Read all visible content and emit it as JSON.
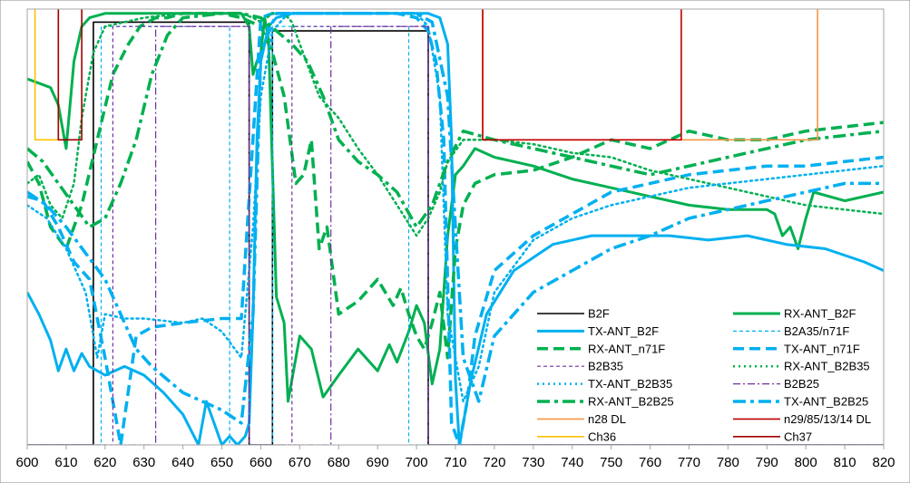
{
  "chart_data": {
    "type": "line",
    "title": "",
    "xlabel": "",
    "ylabel": "",
    "xlim": [
      600,
      820
    ],
    "ylim": [
      0,
      100
    ],
    "x_ticks": [
      600,
      610,
      620,
      630,
      640,
      650,
      660,
      670,
      680,
      690,
      700,
      710,
      720,
      730,
      740,
      750,
      760,
      770,
      780,
      790,
      800,
      810,
      820
    ],
    "y_tick_labels_visible": false,
    "grid": false,
    "legend_position": "bottom-right",
    "colors": {
      "black": "#000000",
      "green": "#00b050",
      "blue": "#00b0f0",
      "purple": "#7030a0",
      "orange": "#f79646",
      "red": "#c00000",
      "gold": "#ffc000",
      "darkred": "#a00000"
    },
    "series": [
      {
        "name": "B2F",
        "color": "#000000",
        "style": "solid",
        "width": 1.6,
        "x": [
          600,
          617,
          617,
          657,
          657,
          663,
          663,
          703,
          703,
          820
        ],
        "y": [
          0,
          0,
          97,
          97,
          0,
          0,
          95,
          95,
          0,
          0
        ]
      },
      {
        "name": "RX-ANT_B2F",
        "color": "#00b050",
        "style": "solid",
        "width": 3,
        "x": [
          600,
          603,
          606,
          608,
          609,
          610,
          612,
          614,
          616,
          620,
          630,
          640,
          650,
          655,
          657,
          658,
          659,
          660,
          661,
          662,
          664,
          666,
          667,
          670,
          673,
          676,
          680,
          685,
          690,
          693,
          695,
          698,
          700,
          702,
          704,
          706,
          708,
          710,
          712,
          715,
          720,
          730,
          740,
          750,
          760,
          770,
          780,
          790,
          792,
          794,
          796,
          798,
          800,
          802,
          810,
          820
        ],
        "y": [
          84,
          83,
          82,
          78,
          73,
          68,
          88,
          96,
          98,
          99,
          99,
          99,
          99,
          99,
          96,
          85,
          88,
          90,
          98,
          93,
          34,
          28,
          10,
          25,
          22,
          11,
          16,
          22,
          17,
          23,
          19,
          26,
          32,
          28,
          14,
          22,
          48,
          62,
          64,
          68,
          66,
          64,
          61,
          59,
          57,
          55,
          54,
          54,
          53,
          48,
          50,
          45,
          52,
          58,
          56,
          58
        ]
      },
      {
        "name": "TX-ANT_B2F",
        "color": "#00b0f0",
        "style": "solid",
        "width": 3,
        "x": [
          600,
          603,
          606,
          608,
          610,
          612,
          614,
          616,
          620,
          625,
          630,
          635,
          640,
          644,
          646,
          648,
          650,
          652,
          654,
          656,
          657,
          658,
          659,
          660,
          662,
          664,
          668,
          675,
          685,
          695,
          700,
          703,
          706,
          708,
          709,
          710,
          711,
          714,
          718,
          725,
          735,
          745,
          755,
          765,
          775,
          785,
          795,
          805,
          815,
          820
        ],
        "y": [
          35,
          30,
          24,
          17,
          22,
          17,
          21,
          18,
          16,
          18,
          16,
          12,
          7,
          0,
          10,
          5,
          0,
          2,
          0,
          2,
          5,
          30,
          70,
          88,
          96,
          98,
          99,
          99,
          99,
          99,
          99,
          99,
          98,
          92,
          70,
          15,
          0,
          15,
          30,
          40,
          46,
          48,
          48,
          48,
          47,
          48,
          46,
          45,
          42,
          40
        ]
      },
      {
        "name": "B2A35/n71F",
        "color": "#00b0f0",
        "style": "dash-thin",
        "width": 1.2,
        "x": [
          600,
          619,
          619,
          652,
          652,
          663,
          663,
          698,
          698,
          820
        ],
        "y": [
          0,
          0,
          96,
          96,
          0,
          0,
          96,
          96,
          0,
          0
        ]
      },
      {
        "name": "RX-ANT_n71F",
        "color": "#00b050",
        "style": "dash-thick",
        "width": 3.5,
        "x": [
          600,
          603,
          606,
          610,
          614,
          618,
          622,
          626,
          629,
          631,
          633,
          636,
          640,
          650,
          655,
          660,
          663,
          666,
          669,
          671,
          673,
          675,
          677,
          680,
          685,
          690,
          694,
          696,
          698,
          700,
          702,
          704,
          706,
          708,
          710,
          712,
          715,
          720,
          730,
          740,
          750,
          760,
          770,
          780,
          790,
          800,
          810,
          820
        ],
        "y": [
          65,
          60,
          50,
          45,
          55,
          70,
          85,
          92,
          96,
          97,
          98,
          98,
          99,
          99,
          98,
          96,
          90,
          80,
          60,
          62,
          70,
          45,
          50,
          30,
          33,
          38,
          32,
          36,
          30,
          25,
          22,
          28,
          35,
          20,
          45,
          55,
          60,
          62,
          63,
          66,
          70,
          68,
          72,
          70,
          70,
          72,
          73,
          74
        ]
      },
      {
        "name": "TX-ANT_n71F",
        "color": "#00b0f0",
        "style": "dash-thick",
        "width": 3.5,
        "x": [
          600,
          604,
          608,
          612,
          616,
          620,
          624,
          628,
          632,
          640,
          650,
          655,
          660,
          663,
          665,
          670,
          680,
          690,
          695,
          700,
          703,
          705,
          707,
          709,
          711,
          713,
          715,
          720,
          730,
          740,
          750,
          760,
          770,
          780,
          790,
          800,
          810,
          820
        ],
        "y": [
          57,
          56,
          50,
          42,
          38,
          20,
          0,
          25,
          27,
          28,
          29,
          29,
          98,
          99,
          99,
          99,
          99,
          99,
          99,
          98,
          95,
          88,
          70,
          5,
          0,
          10,
          25,
          40,
          48,
          53,
          58,
          60,
          62,
          63,
          64,
          64,
          65,
          66
        ]
      },
      {
        "name": "B2B35",
        "color": "#7030a0",
        "style": "dash-thin",
        "width": 1.2,
        "x": [
          600,
          622,
          622,
          657,
          657,
          668,
          668,
          703,
          703,
          820
        ],
        "y": [
          0,
          0,
          96,
          96,
          0,
          0,
          96,
          96,
          0,
          0
        ]
      },
      {
        "name": "RX-ANT_B2B35",
        "color": "#00b050",
        "style": "dot",
        "width": 2.5,
        "x": [
          600,
          603,
          606,
          609,
          612,
          614,
          617,
          620,
          630,
          640,
          650,
          655,
          658,
          660,
          663,
          666,
          668,
          670,
          675,
          680,
          685,
          690,
          695,
          700,
          703,
          706,
          708,
          712,
          720,
          730,
          740,
          750,
          760,
          770,
          780,
          790,
          800,
          810,
          820
        ],
        "y": [
          60,
          62,
          55,
          52,
          60,
          75,
          90,
          96,
          98,
          99,
          99,
          99,
          98,
          97,
          99,
          99,
          97,
          92,
          80,
          75,
          68,
          62,
          55,
          48,
          52,
          58,
          65,
          70,
          70,
          69,
          67,
          66,
          63,
          61,
          59,
          57,
          55,
          54,
          53
        ]
      },
      {
        "name": "TX-ANT_B2B35",
        "color": "#00b0f0",
        "style": "dot",
        "width": 2.5,
        "x": [
          600,
          605,
          610,
          615,
          618,
          620,
          625,
          630,
          640,
          645,
          650,
          655,
          658,
          660,
          663,
          666,
          668,
          670,
          680,
          690,
          700,
          703,
          706,
          708,
          712,
          716,
          720,
          730,
          740,
          750,
          760,
          770,
          780,
          790,
          800,
          810,
          820
        ],
        "y": [
          55,
          52,
          45,
          35,
          20,
          30,
          29,
          29,
          28,
          29,
          26,
          20,
          50,
          80,
          95,
          98,
          99,
          99,
          99,
          99,
          99,
          96,
          80,
          30,
          10,
          18,
          35,
          47,
          52,
          55,
          57,
          59,
          60,
          61,
          62,
          63,
          64
        ]
      },
      {
        "name": "B2B25",
        "color": "#7030a0",
        "style": "dashdot",
        "width": 1.2,
        "x": [
          600,
          633,
          633,
          657,
          657,
          678,
          678,
          703,
          703,
          820
        ],
        "y": [
          0,
          0,
          96,
          96,
          0,
          0,
          96,
          96,
          0,
          0
        ]
      },
      {
        "name": "RX-ANT_B2B25",
        "color": "#00b050",
        "style": "dashdot-thick",
        "width": 3.5,
        "x": [
          600,
          604,
          608,
          612,
          616,
          620,
          624,
          628,
          632,
          636,
          640,
          650,
          655,
          660,
          664,
          668,
          672,
          676,
          680,
          685,
          690,
          695,
          700,
          704,
          708,
          712,
          720,
          730,
          740,
          750,
          760,
          770,
          780,
          790,
          800,
          810,
          820
        ],
        "y": [
          68,
          65,
          60,
          55,
          50,
          52,
          60,
          70,
          85,
          94,
          98,
          99,
          99,
          98,
          95,
          92,
          88,
          80,
          70,
          65,
          62,
          58,
          50,
          55,
          65,
          72,
          70,
          68,
          66,
          64,
          62,
          64,
          66,
          68,
          70,
          71,
          72
        ]
      },
      {
        "name": "TX-ANT_B2B25",
        "color": "#00b0f0",
        "style": "dashdot-thick",
        "width": 3.5,
        "x": [
          600,
          605,
          610,
          615,
          620,
          624,
          628,
          632,
          640,
          650,
          655,
          658,
          660,
          664,
          668,
          672,
          676,
          680,
          690,
          700,
          704,
          708,
          712,
          716,
          720,
          730,
          740,
          750,
          760,
          770,
          780,
          790,
          800,
          810,
          820
        ],
        "y": [
          58,
          55,
          50,
          44,
          38,
          30,
          22,
          18,
          12,
          8,
          5,
          30,
          90,
          99,
          99,
          99,
          99,
          99,
          99,
          99,
          97,
          80,
          20,
          10,
          25,
          35,
          40,
          45,
          48,
          52,
          54,
          56,
          58,
          60,
          60
        ]
      },
      {
        "name": "n28 DL",
        "color": "#f79646",
        "style": "solid",
        "width": 1.6,
        "x": [
          717,
          717,
          803,
          803
        ],
        "y": [
          100,
          70,
          70,
          100
        ]
      },
      {
        "name": "n29/85/13/14 DL",
        "color": "#c00000",
        "style": "solid",
        "width": 1.6,
        "x": [
          717,
          717,
          768,
          768
        ],
        "y": [
          100,
          70,
          70,
          100
        ]
      },
      {
        "name": "Ch36",
        "color": "#ffc000",
        "style": "solid",
        "width": 1.6,
        "x": [
          602,
          602,
          608,
          608
        ],
        "y": [
          100,
          70,
          70,
          100
        ]
      },
      {
        "name": "Ch37",
        "color": "#a00000",
        "style": "solid",
        "width": 1.6,
        "x": [
          608,
          608,
          614,
          614
        ],
        "y": [
          100,
          70,
          70,
          100
        ]
      }
    ]
  }
}
